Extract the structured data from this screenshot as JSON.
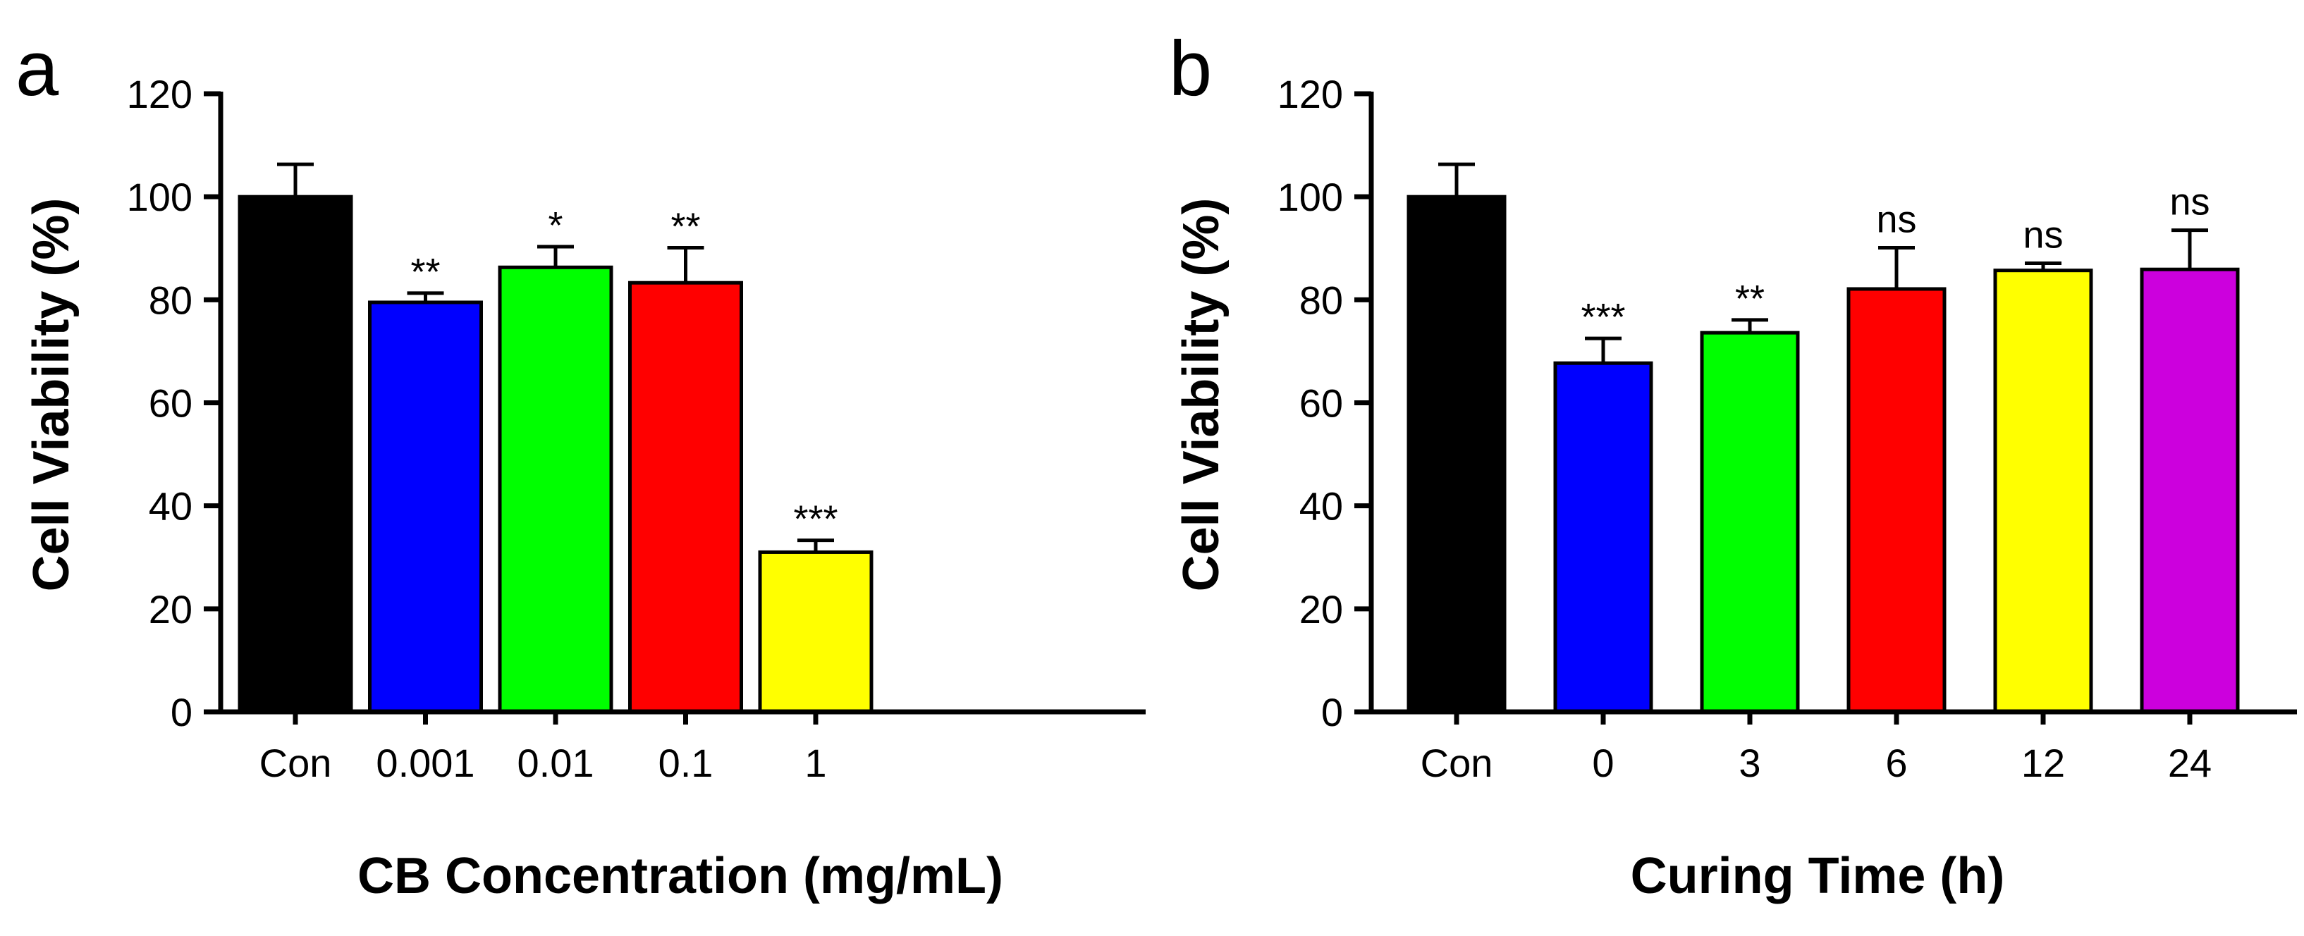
{
  "chart_data": [
    {
      "type": "bar",
      "panel_label": "a",
      "categories": [
        "Con",
        "0.001",
        "0.01",
        "0.1",
        "1"
      ],
      "values": [
        100,
        79.5,
        86.3,
        83.3,
        31
      ],
      "errors": [
        6.3,
        1.8,
        4.0,
        6.8,
        2.3
      ],
      "significance": [
        "",
        "**",
        "*",
        "**",
        "***"
      ],
      "colors": [
        "#000000",
        "#0000ff",
        "#00ff00",
        "#ff0000",
        "#ffff00"
      ],
      "xlabel": "CB Concentration (mg/mL)",
      "ylabel": "Cell Viability (%)",
      "ylim": [
        0,
        120
      ],
      "yticks": [
        0,
        20,
        40,
        60,
        80,
        100,
        120
      ]
    },
    {
      "type": "bar",
      "panel_label": "b",
      "categories": [
        "Con",
        "0",
        "3",
        "6",
        "12",
        "24"
      ],
      "values": [
        100,
        67.7,
        73.6,
        82.1,
        85.7,
        85.9
      ],
      "errors": [
        6.3,
        4.8,
        2.5,
        8.0,
        1.4,
        7.6
      ],
      "significance": [
        "",
        "***",
        "**",
        "ns",
        "ns",
        "ns"
      ],
      "colors": [
        "#000000",
        "#0000ff",
        "#00ff00",
        "#ff0000",
        "#ffff00",
        "#cc00dd"
      ],
      "xlabel": "Curing Time (h)",
      "ylabel": "Cell Viability (%)",
      "ylim": [
        0,
        120
      ],
      "yticks": [
        0,
        20,
        40,
        60,
        80,
        100,
        120
      ]
    }
  ]
}
